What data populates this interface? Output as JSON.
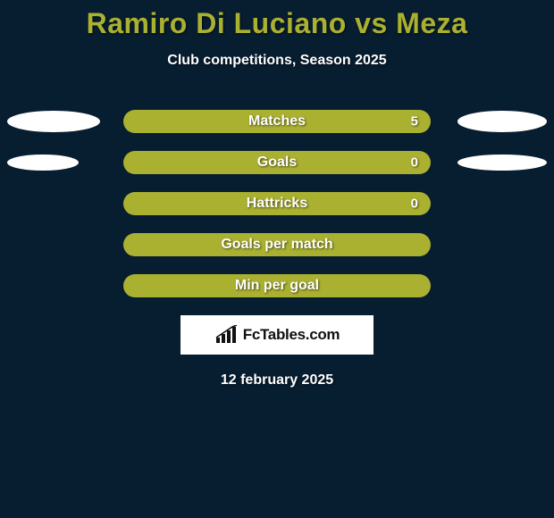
{
  "background_color": "#071d30",
  "title": {
    "text": "Ramiro Di Luciano vs Meza",
    "color": "#aab030",
    "fontsize": 32
  },
  "subtitle": {
    "text": "Club competitions, Season 2025",
    "color": "#ffffff",
    "fontsize": 16
  },
  "bar_color": "#aab030",
  "bar_border_radius": 13,
  "ellipse_color": "#ffffff",
  "rows": [
    {
      "label": "Matches",
      "value_right": "5",
      "ellipse_left": {
        "width": 104,
        "height": 24
      },
      "ellipse_right": {
        "width": 100,
        "height": 24
      }
    },
    {
      "label": "Goals",
      "value_right": "0",
      "ellipse_left": {
        "width": 80,
        "height": 18
      },
      "ellipse_right": {
        "width": 100,
        "height": 18
      }
    },
    {
      "label": "Hattricks",
      "value_right": "0",
      "ellipse_left": null,
      "ellipse_right": null
    },
    {
      "label": "Goals per match",
      "value_right": "",
      "ellipse_left": null,
      "ellipse_right": null
    },
    {
      "label": "Min per goal",
      "value_right": "",
      "ellipse_left": null,
      "ellipse_right": null
    }
  ],
  "logo": {
    "text": "FcTables.com",
    "box_bg": "#ffffff",
    "text_color": "#111111",
    "icon_color": "#111111"
  },
  "date": {
    "text": "12 february 2025",
    "color": "#ffffff",
    "fontsize": 16
  }
}
